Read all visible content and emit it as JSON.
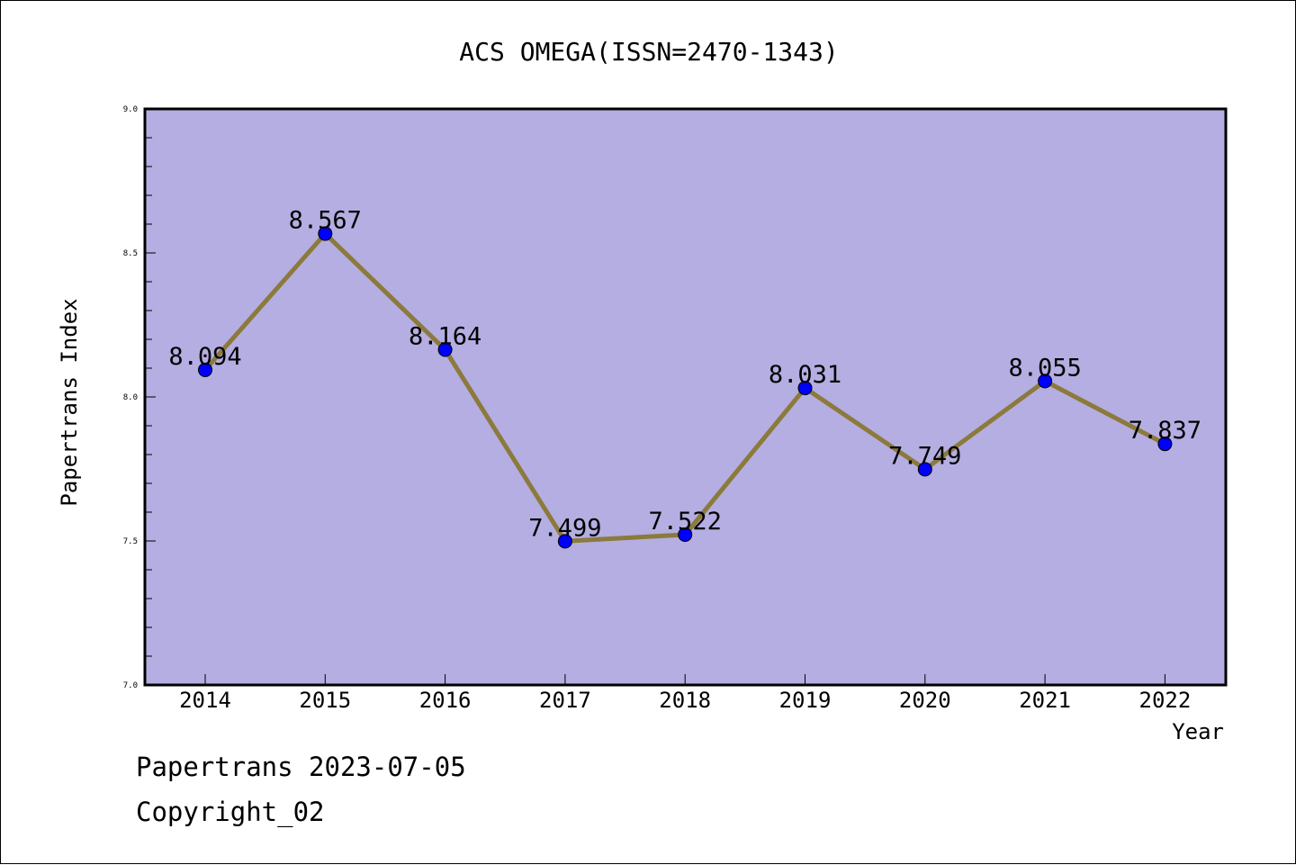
{
  "colors": {
    "plot_background": "#b4aee2",
    "line": "#8b7a3c",
    "marker": "#0000ff",
    "frame": "#000000"
  },
  "footer": {
    "date_text": "Papertrans 2023-07-05",
    "copyright_text": "Copyright_02"
  },
  "chart_data": {
    "type": "line",
    "title": "ACS OMEGA(ISSN=2470-1343)",
    "xlabel": "Year",
    "ylabel": "Papertrans Index",
    "categories": [
      "2014",
      "2015",
      "2016",
      "2017",
      "2018",
      "2019",
      "2020",
      "2021",
      "2022"
    ],
    "series": [
      {
        "values": [
          8.094,
          8.567,
          8.164,
          7.499,
          7.522,
          8.031,
          7.749,
          8.055,
          7.837
        ],
        "value_labels": [
          "8.094",
          "8.567",
          "8.164",
          "7.499",
          "7.522",
          "8.031",
          "7.749",
          "8.055",
          "7.837"
        ]
      }
    ],
    "ylim": [
      7.0,
      9.0
    ],
    "yticks": [
      "7.0",
      "7.5",
      "8.0",
      "8.5",
      "9.0"
    ],
    "grid": false,
    "legend": "none"
  }
}
